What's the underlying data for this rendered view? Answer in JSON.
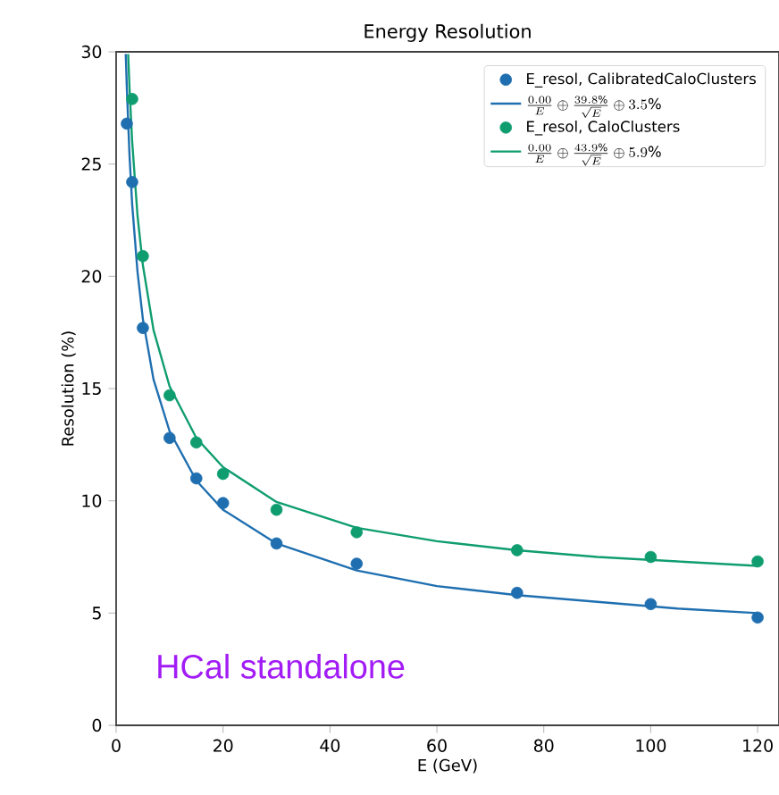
{
  "chart_data": {
    "type": "scatter",
    "title": "Energy Resolution",
    "xlabel": "E (GeV)",
    "ylabel": "Resolution (%)",
    "xlim": [
      0,
      124
    ],
    "ylim": [
      0,
      30
    ],
    "xticks": [
      0,
      20,
      40,
      60,
      80,
      100,
      120
    ],
    "yticks": [
      0,
      5,
      10,
      15,
      20,
      25,
      30
    ],
    "legend": "top right",
    "marker": "circle",
    "annotations": [
      "HCal standalone"
    ],
    "series": [
      {
        "name": "E_resol, CalibratedCaloClusters",
        "color": "#1f6fb0",
        "x": [
          2,
          3,
          5,
          10,
          15,
          20,
          30,
          45,
          75,
          100,
          120
        ],
        "values": [
          26.8,
          24.2,
          17.7,
          12.8,
          11.0,
          9.9,
          8.1,
          7.2,
          5.9,
          5.4,
          4.8
        ]
      },
      {
        "type": "line",
        "marker": "none",
        "line_style": "solid",
        "name": "\\frac{0.00}{E} \\oplus \\frac{39.8\\%}{\\sqrt{E}} \\oplus 3.5\\%",
        "color": "#1f6fb0",
        "x": [
          1.8,
          2,
          2.5,
          3,
          4,
          5,
          7,
          10,
          15,
          20,
          30,
          45,
          60,
          75,
          90,
          105,
          120
        ],
        "values": [
          29.9,
          28.4,
          25.4,
          23.2,
          20.2,
          18.1,
          15.4,
          13.1,
          10.9,
          9.6,
          8.1,
          6.9,
          6.2,
          5.8,
          5.5,
          5.2,
          5.0
        ]
      },
      {
        "name": "E_resol, CaloClusters",
        "color": "#0f9d70",
        "x": [
          3,
          5,
          10,
          15,
          20,
          30,
          45,
          75,
          100,
          120
        ],
        "values": [
          27.9,
          20.9,
          14.7,
          12.6,
          11.2,
          9.6,
          8.6,
          7.8,
          7.5,
          7.3
        ]
      },
      {
        "type": "line",
        "marker": "none",
        "line_style": "solid",
        "name": "\\frac{0.00}{E} \\oplus \\frac{43.9\\%}{\\sqrt{E}} \\oplus 5.9\\%",
        "color": "#0f9d70",
        "x": [
          2.25,
          2.5,
          3,
          4,
          5,
          7,
          10,
          15,
          20,
          30,
          45,
          60,
          75,
          90,
          105,
          120
        ],
        "values": [
          29.9,
          28.4,
          26.0,
          22.7,
          20.5,
          17.6,
          15.1,
          12.8,
          11.5,
          9.95,
          8.8,
          8.2,
          7.8,
          7.5,
          7.3,
          7.1
        ]
      }
    ]
  }
}
